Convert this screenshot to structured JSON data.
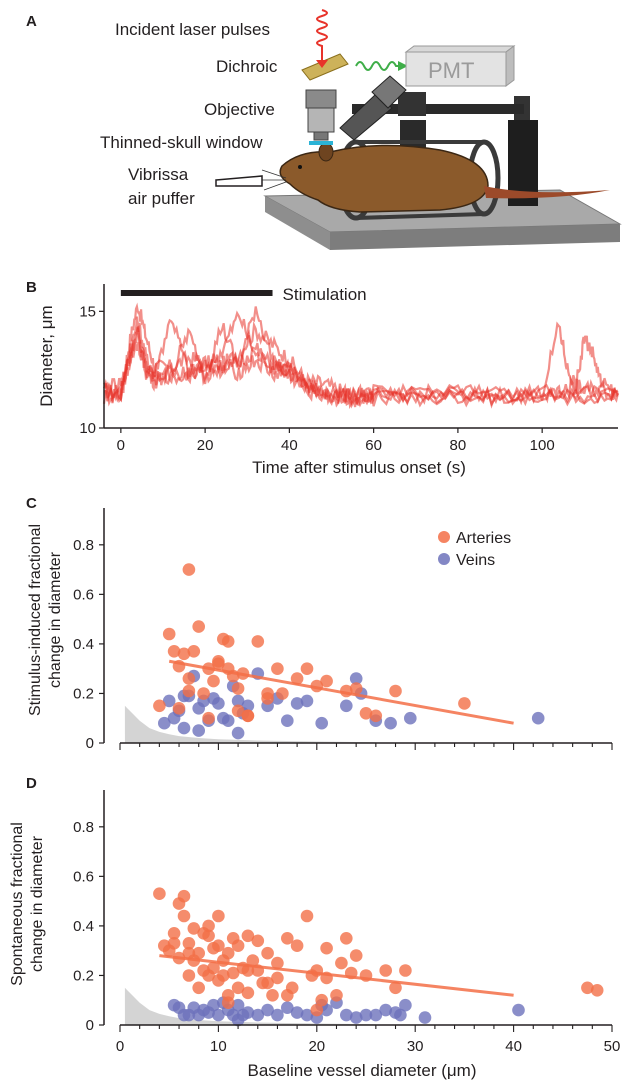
{
  "panels": {
    "a": {
      "letter": "A",
      "labels": {
        "laser": "Incident laser pulses",
        "dichroic": "Dichroic",
        "pmt": "PMT",
        "objective": "Objective",
        "window": "Thinned-skull window",
        "vibrissa": "Vibrissa",
        "puffer": "air puffer"
      },
      "colors": {
        "laser": "#e8332a",
        "emission": "#3fae49",
        "mouse": "#8b5a2b",
        "platform": "#9d9d9d",
        "window": "#2bb3d6"
      }
    },
    "b": {
      "letter": "B"
    },
    "c": {
      "letter": "C"
    },
    "d": {
      "letter": "D"
    }
  },
  "chart_data": [
    {
      "type": "line",
      "panel": "B",
      "xlabel": "Time after stimulus onset (s)",
      "ylabel": "Diameter, μm",
      "xlim": [
        -4,
        118
      ],
      "ylim": [
        10,
        16
      ],
      "xticks": [
        "0",
        "20",
        "40",
        "60",
        "80",
        "100"
      ],
      "yticks": [
        "10",
        "15"
      ],
      "annotation": "Stimulation",
      "stimulation_bar": [
        0,
        36
      ],
      "color": "#e8332a",
      "series": [
        {
          "x": [
            -4,
            0,
            2,
            4,
            6,
            8,
            12,
            16,
            20,
            24,
            28,
            32,
            36,
            40,
            44,
            48,
            52,
            56,
            60,
            70,
            80,
            90,
            100,
            110,
            118
          ],
          "y": [
            11.6,
            11.5,
            13.6,
            15.3,
            13.9,
            12.6,
            12.6,
            13.0,
            12.8,
            12.7,
            13.2,
            14.2,
            13.6,
            12.9,
            12.0,
            11.9,
            11.6,
            11.4,
            11.4,
            11.3,
            11.4,
            11.3,
            11.5,
            11.5,
            11.5
          ]
        },
        {
          "x": [
            -4,
            0,
            2,
            4,
            6,
            8,
            12,
            16,
            20,
            24,
            28,
            32,
            36,
            40,
            44,
            48,
            52,
            56,
            60,
            70,
            80,
            90,
            100,
            110,
            118
          ],
          "y": [
            11.3,
            11.6,
            13.1,
            14.6,
            13.0,
            12.3,
            14.8,
            12.4,
            12.6,
            13.3,
            14.9,
            13.1,
            12.8,
            12.7,
            11.7,
            11.6,
            11.3,
            11.5,
            11.2,
            11.6,
            11.2,
            11.5,
            11.4,
            11.3,
            11.6
          ]
        },
        {
          "x": [
            -4,
            0,
            2,
            4,
            6,
            8,
            12,
            16,
            20,
            24,
            28,
            32,
            36,
            40,
            44,
            48,
            52,
            56,
            60,
            70,
            80,
            90,
            100,
            104,
            106,
            108,
            110,
            114,
            118
          ],
          "y": [
            11.8,
            11.4,
            12.8,
            14.2,
            12.6,
            12.2,
            12.3,
            14.1,
            12.2,
            14.4,
            12.6,
            15.2,
            12.9,
            12.2,
            11.9,
            11.5,
            11.4,
            11.2,
            11.5,
            11.4,
            11.6,
            11.4,
            11.5,
            14.4,
            12.5,
            11.8,
            11.6,
            11.7,
            11.5
          ]
        },
        {
          "x": [
            -4,
            0,
            2,
            4,
            6,
            8,
            12,
            16,
            20,
            24,
            28,
            32,
            36,
            40,
            44,
            48,
            52,
            56,
            60,
            70,
            80,
            90,
            100,
            104,
            108,
            110,
            112,
            114,
            118
          ],
          "y": [
            11.5,
            11.3,
            13.3,
            14.0,
            12.4,
            12.0,
            12.4,
            12.3,
            12.7,
            12.5,
            12.8,
            13.4,
            12.6,
            12.5,
            11.8,
            11.4,
            11.5,
            11.3,
            11.4,
            11.5,
            11.3,
            11.6,
            11.3,
            11.6,
            11.8,
            13.9,
            13.2,
            11.9,
            11.4
          ]
        },
        {
          "x": [
            -4,
            0,
            2,
            4,
            6,
            8,
            12,
            16,
            20,
            24,
            28,
            32,
            36,
            40,
            44,
            48,
            52,
            56,
            60,
            70,
            80,
            90,
            100,
            110,
            118
          ],
          "y": [
            11.7,
            11.8,
            12.9,
            13.7,
            12.5,
            12.1,
            12.2,
            12.4,
            12.3,
            12.5,
            12.4,
            12.9,
            12.3,
            12.3,
            11.6,
            11.4,
            11.2,
            11.3,
            11.3,
            11.2,
            11.5,
            11.3,
            11.4,
            11.4,
            11.4
          ]
        }
      ]
    },
    {
      "type": "scatter",
      "panel": "C",
      "xlabel": "",
      "ylabel": "Stimulus-induced fractional change in diameter",
      "ylabel_lines": [
        "Stimulus-induced fractional",
        "change in diameter"
      ],
      "xlim": [
        0,
        50
      ],
      "ylim": [
        0,
        0.88
      ],
      "yticks": [
        "0",
        "0.2",
        "0.4",
        "0.6",
        "0.8"
      ],
      "legend": "top-right",
      "series": [
        {
          "name": "Arteries",
          "color": "#f36f47",
          "x": [
            4,
            5,
            5.5,
            6,
            6.5,
            7,
            7,
            7.5,
            8,
            8.5,
            9,
            9.5,
            10,
            10.5,
            11,
            11,
            11.5,
            12,
            12.5,
            13,
            14,
            15,
            16,
            16.5,
            18,
            19,
            20,
            21,
            23,
            24,
            25,
            26,
            28,
            35,
            6,
            9,
            12,
            15,
            7,
            10,
            13
          ],
          "y": [
            0.15,
            0.44,
            0.37,
            0.31,
            0.36,
            0.7,
            0.26,
            0.37,
            0.47,
            0.2,
            0.3,
            0.25,
            0.32,
            0.42,
            0.41,
            0.3,
            0.27,
            0.13,
            0.28,
            0.11,
            0.41,
            0.2,
            0.3,
            0.2,
            0.26,
            0.3,
            0.23,
            0.25,
            0.21,
            0.22,
            0.12,
            0.11,
            0.21,
            0.16,
            0.14,
            0.1,
            0.22,
            0.18,
            0.21,
            0.33,
            0.11
          ],
          "fit": {
            "x": [
              5,
              40
            ],
            "y": [
              0.33,
              0.08
            ]
          }
        },
        {
          "name": "Veins",
          "color": "#6d72bb",
          "x": [
            4.5,
            5,
            5.5,
            6,
            6.5,
            7,
            7.5,
            8,
            8.5,
            9,
            9.5,
            10,
            10.5,
            11,
            11.5,
            12,
            12.5,
            13,
            14,
            15,
            16,
            17,
            18,
            19,
            20.5,
            23,
            24,
            24.5,
            26,
            27.5,
            29.5,
            42.5,
            6.5,
            8,
            12
          ],
          "y": [
            0.08,
            0.17,
            0.1,
            0.13,
            0.19,
            0.19,
            0.27,
            0.14,
            0.17,
            0.09,
            0.18,
            0.16,
            0.1,
            0.09,
            0.23,
            0.17,
            0.12,
            0.15,
            0.28,
            0.15,
            0.18,
            0.09,
            0.16,
            0.17,
            0.08,
            0.15,
            0.26,
            0.2,
            0.09,
            0.08,
            0.1,
            0.1,
            0.06,
            0.05,
            0.04
          ]
        }
      ],
      "noise_floor": {
        "x": [
          0.5,
          1,
          2,
          3,
          4,
          5,
          6,
          8,
          10,
          14,
          20,
          26
        ],
        "y": [
          0.15,
          0.13,
          0.09,
          0.06,
          0.045,
          0.035,
          0.028,
          0.02,
          0.015,
          0.01,
          0.006,
          0.003
        ],
        "color": "#d4d4d4"
      }
    },
    {
      "type": "scatter",
      "panel": "D",
      "xlabel": "Baseline vessel diameter (μm)",
      "ylabel": "Spontaneous fractional change in diameter",
      "ylabel_lines": [
        "Spontaneous fractional",
        "change in diameter"
      ],
      "xlim": [
        0,
        50
      ],
      "ylim": [
        0,
        0.88
      ],
      "xticks": [
        "0",
        "10",
        "20",
        "30",
        "40",
        "50"
      ],
      "yticks": [
        "0",
        "0.2",
        "0.4",
        "0.6",
        "0.8"
      ],
      "series": [
        {
          "name": "Arteries",
          "color": "#f36f47",
          "x": [
            4,
            4.5,
            5,
            5.5,
            6,
            6,
            6.5,
            6.5,
            7,
            7,
            7.5,
            7.5,
            8,
            8,
            8.5,
            8.5,
            9,
            9,
            9.5,
            9.5,
            10,
            10,
            10.5,
            10.5,
            11,
            11,
            11.5,
            11.5,
            12,
            12,
            12.5,
            13,
            13,
            13.5,
            14,
            14,
            14.5,
            15,
            15.5,
            16,
            16,
            17,
            17.5,
            18,
            19,
            19.5,
            20,
            20.5,
            21,
            21,
            22,
            22.5,
            23,
            23.5,
            24,
            25,
            27,
            28,
            29,
            47.5,
            48.5,
            5.5,
            7,
            9,
            10,
            11,
            13,
            15,
            17,
            20
          ],
          "y": [
            0.53,
            0.32,
            0.3,
            0.37,
            0.27,
            0.49,
            0.44,
            0.52,
            0.33,
            0.2,
            0.39,
            0.26,
            0.29,
            0.15,
            0.37,
            0.22,
            0.2,
            0.36,
            0.31,
            0.23,
            0.44,
            0.18,
            0.2,
            0.26,
            0.29,
            0.12,
            0.35,
            0.21,
            0.32,
            0.15,
            0.23,
            0.36,
            0.13,
            0.26,
            0.22,
            0.34,
            0.17,
            0.29,
            0.12,
            0.25,
            0.19,
            0.35,
            0.15,
            0.32,
            0.44,
            0.2,
            0.22,
            0.1,
            0.31,
            0.19,
            0.12,
            0.25,
            0.35,
            0.21,
            0.28,
            0.2,
            0.22,
            0.15,
            0.22,
            0.15,
            0.14,
            0.33,
            0.29,
            0.4,
            0.32,
            0.09,
            0.22,
            0.17,
            0.12,
            0.06
          ],
          "fit": {
            "x": [
              4,
              40
            ],
            "y": [
              0.28,
              0.12
            ]
          }
        },
        {
          "name": "Veins",
          "color": "#6d72bb",
          "x": [
            5.5,
            6,
            6.5,
            7,
            7.5,
            8,
            9,
            9.5,
            10,
            10.5,
            11,
            11.5,
            12,
            12.5,
            13,
            14,
            15,
            16,
            17,
            18,
            19,
            20,
            20.5,
            21,
            22,
            23,
            24,
            25,
            26,
            27,
            28,
            28.5,
            29,
            31,
            40.5,
            8.5,
            12
          ],
          "y": [
            0.08,
            0.07,
            0.04,
            0.04,
            0.07,
            0.04,
            0.05,
            0.08,
            0.04,
            0.09,
            0.06,
            0.04,
            0.08,
            0.04,
            0.05,
            0.04,
            0.06,
            0.04,
            0.07,
            0.05,
            0.04,
            0.03,
            0.08,
            0.06,
            0.09,
            0.04,
            0.03,
            0.04,
            0.04,
            0.06,
            0.05,
            0.04,
            0.08,
            0.03,
            0.06,
            0.06,
            0.02
          ]
        }
      ],
      "noise_floor": {
        "x": [
          0.5,
          1,
          2,
          3,
          4,
          5,
          6,
          8,
          10,
          14,
          20,
          26
        ],
        "y": [
          0.15,
          0.13,
          0.09,
          0.06,
          0.045,
          0.035,
          0.028,
          0.02,
          0.015,
          0.01,
          0.006,
          0.003
        ],
        "color": "#d4d4d4"
      }
    }
  ]
}
